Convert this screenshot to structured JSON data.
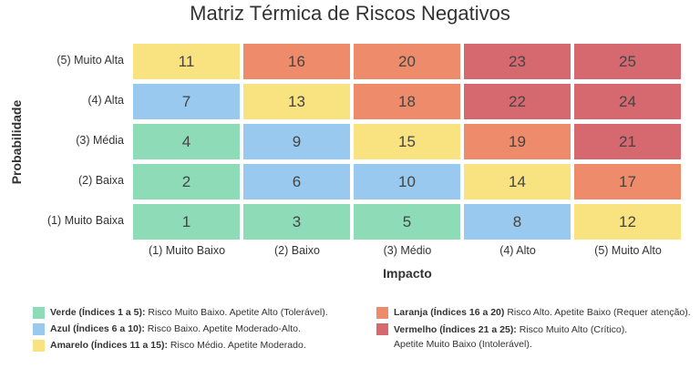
{
  "chart_data": {
    "type": "heatmap",
    "title": "Matriz Térmica de Riscos Negativos",
    "xlabel": "Impacto",
    "ylabel": "Probabilidade",
    "x_categories": [
      "(1) Muito Baixo",
      "(2) Baixo",
      "(3) Médio",
      "(4) Alto",
      "(5) Muito Alto"
    ],
    "y_categories": [
      "(5) Muito Alta",
      "(4) Alta",
      "(3) Média",
      "(2) Baixa",
      "(1) Muito Baixa"
    ],
    "values": [
      [
        11,
        16,
        20,
        23,
        25
      ],
      [
        7,
        13,
        18,
        22,
        24
      ],
      [
        4,
        9,
        15,
        19,
        21
      ],
      [
        2,
        6,
        10,
        14,
        17
      ],
      [
        1,
        3,
        5,
        8,
        12
      ]
    ],
    "legend": [
      {
        "color": "#8ddbb7",
        "label": "Verde (Índices 1 a 5):",
        "text": "Risco Muito Baixo. Apetite Alto (Tolerável).",
        "min": 1,
        "max": 5
      },
      {
        "color": "#99c9ef",
        "label": "Azul (Índices 6 a 10):",
        "text": "Risco Baixo. Apetite Moderado-Alto.",
        "min": 6,
        "max": 10
      },
      {
        "color": "#f9e280",
        "label": "Amarelo (Índices 11 a 15):",
        "text": "Risco Médio. Apetite Moderado.",
        "min": 11,
        "max": 15
      },
      {
        "color": "#ee8b6b",
        "label": "Laranja (Índices 16 a 20)",
        "text": "Risco Alto. Apetite Baixo (Requer atenção).",
        "min": 16,
        "max": 20
      },
      {
        "color": "#d6686f",
        "label": "Vermelho (Índices 21 a 25):",
        "text": "Risco Muito Alto (Crítico). Apetite Muito Baixo (Intolerável).",
        "min": 21,
        "max": 25
      }
    ]
  }
}
